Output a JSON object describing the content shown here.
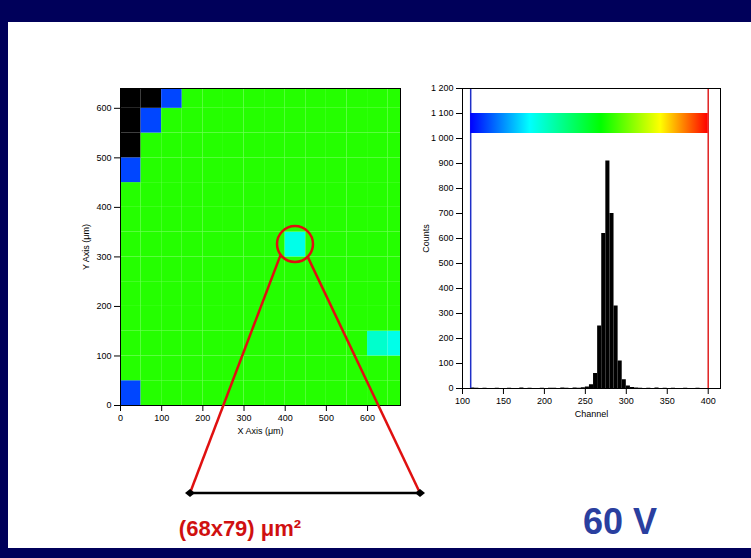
{
  "chart_data": [
    {
      "type": "heatmap",
      "xlabel": "X Axis (μm)",
      "ylabel": "Y Axis (μm)",
      "xlim": [
        0,
        680
      ],
      "ylim": [
        0,
        640
      ],
      "xticks": [
        0,
        100,
        200,
        300,
        400,
        500,
        600
      ],
      "yticks": [
        0,
        100,
        200,
        300,
        400,
        500,
        600
      ],
      "cells": {
        "x_bins": [
          0,
          50,
          100,
          150,
          200,
          250,
          300,
          350,
          400,
          450,
          500,
          550,
          600,
          650,
          700
        ],
        "y_bins": [
          0,
          50,
          100,
          150,
          200,
          250,
          300,
          350,
          400,
          450,
          500,
          550,
          600,
          650
        ],
        "values": [
          [
            130,
            280,
            280,
            280,
            280,
            280,
            280,
            280,
            280,
            280,
            280,
            280,
            280,
            280
          ],
          [
            280,
            280,
            280,
            280,
            280,
            280,
            280,
            280,
            280,
            280,
            280,
            280,
            280,
            280
          ],
          [
            280,
            280,
            280,
            280,
            280,
            280,
            280,
            280,
            280,
            280,
            280,
            280,
            200,
            190
          ],
          [
            280,
            280,
            280,
            280,
            280,
            280,
            280,
            280,
            280,
            280,
            280,
            280,
            280,
            280
          ],
          [
            280,
            280,
            280,
            280,
            280,
            280,
            280,
            280,
            280,
            280,
            280,
            280,
            280,
            280
          ],
          [
            280,
            280,
            280,
            280,
            280,
            280,
            280,
            280,
            280,
            280,
            280,
            280,
            280,
            280
          ],
          [
            280,
            280,
            280,
            280,
            280,
            280,
            280,
            280,
            190,
            280,
            280,
            280,
            280,
            280
          ],
          [
            280,
            280,
            280,
            280,
            280,
            280,
            280,
            280,
            280,
            280,
            280,
            280,
            280,
            280
          ],
          [
            280,
            280,
            280,
            280,
            280,
            280,
            280,
            280,
            280,
            280,
            280,
            280,
            280,
            280
          ],
          [
            130,
            280,
            280,
            280,
            280,
            280,
            280,
            280,
            280,
            280,
            280,
            280,
            280,
            280
          ],
          [
            0,
            280,
            280,
            280,
            280,
            280,
            280,
            280,
            280,
            280,
            280,
            280,
            280,
            280
          ],
          [
            0,
            130,
            280,
            280,
            280,
            280,
            280,
            280,
            280,
            280,
            280,
            280,
            280,
            280
          ],
          [
            0,
            0,
            130,
            280,
            280,
            280,
            280,
            280,
            280,
            280,
            280,
            280,
            280,
            280
          ]
        ]
      },
      "color_range": [
        110,
        400
      ],
      "annotations": [
        {
          "text": "(68x79) μm²",
          "x": 425,
          "y": 325
        }
      ]
    },
    {
      "type": "histogram",
      "xlabel": "Channel",
      "ylabel": "Counts",
      "bins": [
        100,
        105,
        110,
        115,
        120,
        125,
        130,
        135,
        140,
        145,
        150,
        155,
        160,
        165,
        170,
        175,
        180,
        185,
        190,
        195,
        200,
        205,
        210,
        215,
        220,
        225,
        230,
        235,
        240,
        245,
        250,
        255,
        260,
        265,
        270,
        275,
        280,
        285,
        290,
        295,
        300,
        305,
        310,
        315,
        320,
        325,
        330,
        335,
        340,
        345,
        350,
        355,
        360,
        365,
        370,
        375,
        380,
        385,
        390,
        395,
        400
      ],
      "values": [
        0,
        0,
        2,
        1,
        0,
        1,
        0,
        0,
        1,
        0,
        0,
        1,
        0,
        0,
        2,
        0,
        1,
        0,
        0,
        1,
        0,
        1,
        1,
        0,
        2,
        1,
        0,
        2,
        1,
        3,
        6,
        15,
        60,
        250,
        620,
        910,
        700,
        330,
        110,
        35,
        10,
        4,
        2,
        1,
        0,
        1,
        0,
        2,
        0,
        1,
        0,
        1,
        0,
        0,
        1,
        0,
        0,
        1,
        0,
        0
      ],
      "color": "#000000",
      "xlim": [
        100,
        415
      ],
      "ylim": [
        0,
        1200
      ],
      "xticks": [
        100,
        150,
        200,
        250,
        300,
        350,
        400
      ],
      "yticks": [
        0,
        100,
        200,
        300,
        400,
        500,
        600,
        700,
        800,
        900,
        {
          "value": 1000,
          "label": "1 000"
        },
        {
          "value": 1100,
          "label": "1 100"
        },
        {
          "value": 1200,
          "label": "1 200"
        }
      ],
      "color_range": [
        110,
        400
      ],
      "annotations": [
        {
          "text": "60 V"
        }
      ]
    }
  ]
}
